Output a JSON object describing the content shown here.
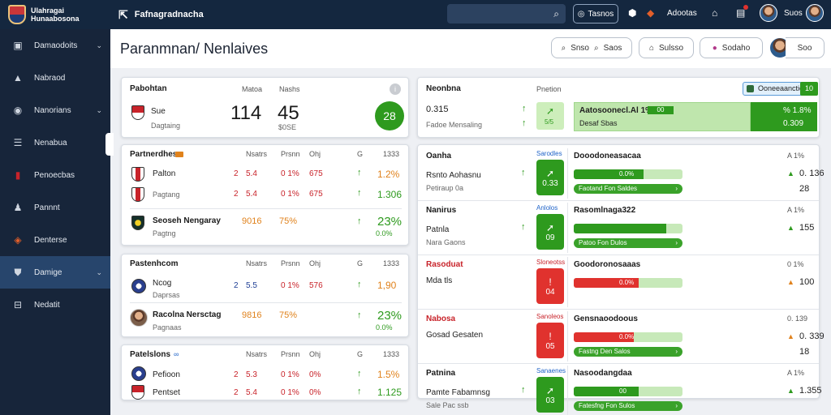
{
  "topbar": {
    "brand_line1": "Ulahragai",
    "brand_line2": "Hunaabosona",
    "page_title": "Fafnagradnacha",
    "button": "Tasnos",
    "label1": "Adootas",
    "user": "Suos"
  },
  "sidebar": {
    "items": [
      {
        "label": "Damaodoits",
        "icon": "clipboard-icon",
        "chevron": true
      },
      {
        "label": "Nabraod",
        "icon": "mountain-icon",
        "chevron": false
      },
      {
        "label": "Nanorians",
        "icon": "map-pin-icon",
        "chevron": true
      },
      {
        "label": "Nenabua",
        "icon": "list-icon",
        "chevron": false
      },
      {
        "label": "Penoecbas",
        "icon": "flag-icon",
        "chevron": false
      },
      {
        "label": "Pannnt",
        "icon": "people-icon",
        "chevron": false
      },
      {
        "label": "Denterse",
        "icon": "crest-icon",
        "chevron": false
      },
      {
        "label": "Damige",
        "icon": "shield-icon",
        "chevron": true
      },
      {
        "label": "Nedatit",
        "icon": "minus-square-icon",
        "chevron": false
      }
    ]
  },
  "header": {
    "title": "Paranmnan/ Nenlaives",
    "btn1": "Snso",
    "btn2": "Saos",
    "btn3": "Sulsso",
    "btn4": "Sodaho",
    "user": "Soo"
  },
  "summary": {
    "title": "Pabohtan",
    "h1": "Matoa",
    "h2": "Nashs",
    "team": "Sue",
    "sub": "Dagtaing",
    "n1": "114",
    "n2": "45",
    "n2sub": "$0SE",
    "badge": "28"
  },
  "groups": [
    {
      "title": "Partnerdhes",
      "headers": [
        "Nsatrs",
        "Prsnn",
        "Ohj",
        "G",
        "1333"
      ],
      "rows": [
        {
          "name": "Palton",
          "c1": "2",
          "v1": "5.4",
          "p": "0 1%",
          "q": "675",
          "r": "1.2%",
          "crest": "rb"
        },
        {
          "name": "Pagtang",
          "c1": "2",
          "v1": "5.4",
          "p": "0 1%",
          "q": "675",
          "r": "1.306",
          "crest": "rb"
        },
        {
          "name": "Seoseh Nengaray",
          "c1": "",
          "v1": "9016",
          "p": "75%",
          "q": "",
          "r": "23%",
          "sub": "Pagtng",
          "sub2": "0.0%",
          "crest": "yk"
        }
      ]
    },
    {
      "title": "Pastenhcom",
      "headers": [
        "Nsatrs",
        "Prsnn",
        "Ohj",
        "G",
        "1333"
      ],
      "rows": [
        {
          "name": "Ncog",
          "c1": "2",
          "v1": "5.5",
          "p": "0 1%",
          "q": "576",
          "r": "1,90",
          "sub": "Daprsas",
          "crest": "navy"
        },
        {
          "name": "Racolna Nersctag",
          "c1": "",
          "v1": "9816",
          "p": "75%",
          "q": "",
          "r": "23%",
          "sub": "Pagnaas",
          "sub2": "0.0%",
          "crest": "avatar"
        }
      ]
    },
    {
      "title": "Patelslons",
      "headers": [
        "Nsatrs",
        "Prsnn",
        "Ohj",
        "G",
        "1333"
      ],
      "rows": [
        {
          "name": "Pefioon",
          "c1": "2",
          "v1": "5.3",
          "p": "0 1%",
          "q": "0%",
          "r": "1.5%",
          "crest": "navy"
        },
        {
          "name": "Pentset",
          "c1": "2",
          "v1": "5.4",
          "p": "0 1%",
          "q": "0%",
          "r": "1.125",
          "crest": "redwhite"
        }
      ]
    }
  ],
  "right_top": {
    "title": "Neonbna",
    "h1": "Pnetion",
    "chip": "Ooneeaanctioes",
    "chip_val": "10",
    "r1": "0.315",
    "r1sub": "Fadoe Mensaling",
    "badge_val": "5/5",
    "green_title": "Aatosoonecl.Al 1%",
    "green_mid": "00",
    "green_sub": "Desaf Sbas",
    "green_v1": "% 1.8%",
    "green_v2": "0.309"
  },
  "right_rows": [
    {
      "title": "Oanha",
      "sub1": "Rsnto Aohasnu",
      "sub2": "Petiraup 0a",
      "chip": "Sarodles",
      "badge": "0.33",
      "color": "green",
      "right_title": "Dooodoneasacaa",
      "bar_val": "0.0%",
      "fill": 0.64,
      "pill": "Faotand Fon Saldes",
      "v1": "0. 136",
      "v2": "28",
      "h": "A 1%"
    },
    {
      "title": "Nanirus",
      "sub1": "Patnla",
      "sub2": "Nara Gaons",
      "chip": "Anlolos",
      "badge": "09",
      "color": "green",
      "right_title": "Rasomlnaga322",
      "bar_val": "",
      "fill": 0.85,
      "pill": "Patoo Fon Dulos",
      "v1": "155",
      "v2": "",
      "h": "A 1%"
    },
    {
      "title": "Rasoduat",
      "sub1": "Mda tls",
      "sub2": "",
      "chip": "Sloneotss",
      "badge": "04",
      "color": "red",
      "right_title": "Goodoronosaaas",
      "bar_val": "0.0%",
      "fill": 0.6,
      "pill": "",
      "v1": "100",
      "v2": "",
      "h": "0 1%"
    },
    {
      "title": "Nabosa",
      "sub1": "Gosad Gesaten",
      "sub2": "",
      "chip": "Sanoleos",
      "badge": "05",
      "color": "red",
      "right_title": "Gensnaoodoous",
      "bar_val": "0.0%",
      "fill": 0.55,
      "pill": "Fastng Den Salos",
      "v1": "0. 339",
      "v2": "18",
      "h": "0. 139"
    },
    {
      "title": "Patnina",
      "sub1": "Pamte Fabamnsg",
      "sub2": "Sale Pac ssb",
      "chip": "Sanaenes",
      "badge": "03",
      "color": "green",
      "right_title": "Nasoodangdaa",
      "bar_val": "00",
      "fill": 0.6,
      "pill": "Fatesfng Fon Sulos",
      "v1": "1.355",
      "v2": "",
      "h": "A 1%"
    }
  ]
}
